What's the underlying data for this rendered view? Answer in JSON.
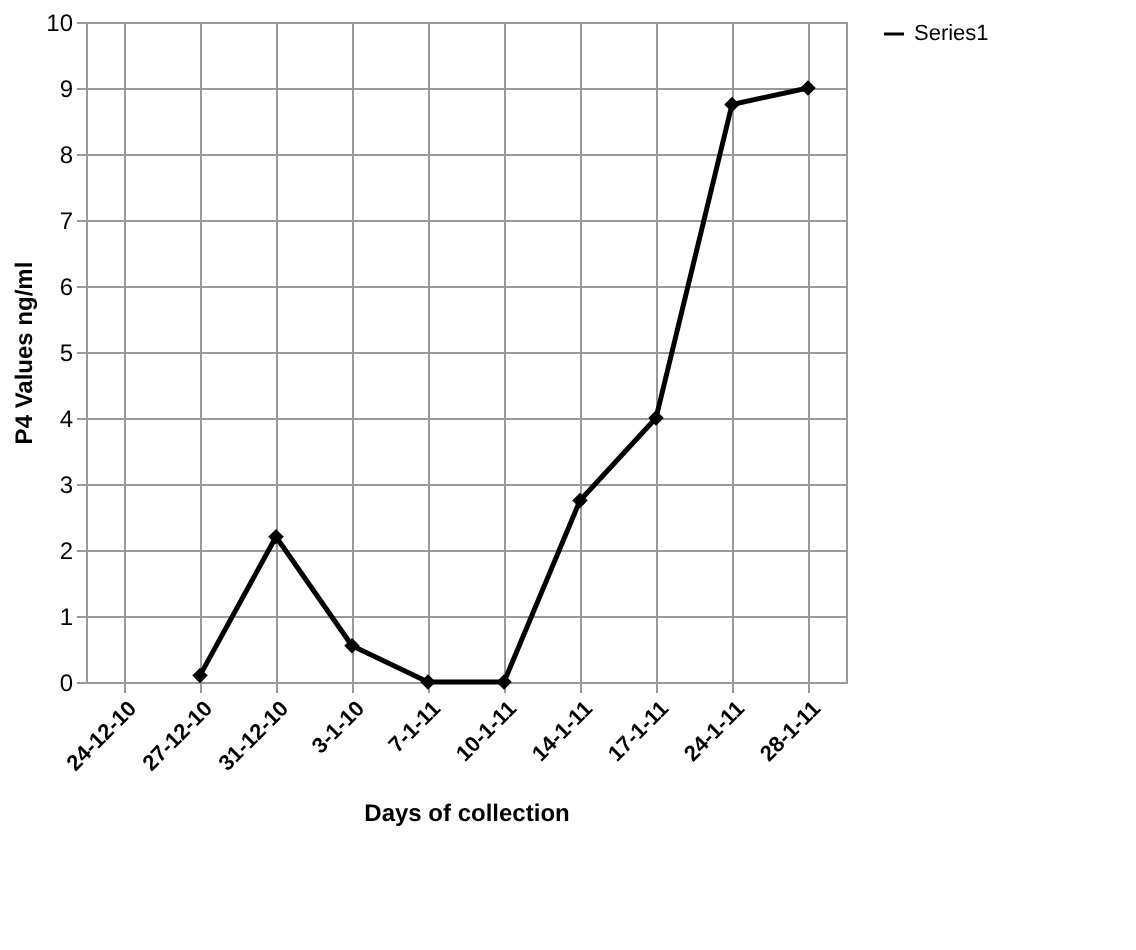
{
  "chart_data": {
    "type": "line",
    "xlabel": "Days of collection",
    "ylabel": "P4 Values ng/ml",
    "categories": [
      "24-12-10",
      "27-12-10",
      "31-12-10",
      "3-1-10",
      "7-1-11",
      "10-1-11",
      "14-1-11",
      "17-1-11",
      "24-1-11",
      "28-1-11"
    ],
    "series": [
      {
        "name": "Series1",
        "color": "#000000",
        "values": [
          null,
          0.1,
          2.2,
          0.55,
          0,
          0,
          2.75,
          4.0,
          8.75,
          9.0
        ]
      }
    ],
    "ylim": [
      0,
      10
    ],
    "yticks": [
      0,
      1,
      2,
      3,
      4,
      5,
      6,
      7,
      8,
      9,
      10
    ],
    "grid": true,
    "legend": "right",
    "marker": "diamond",
    "line_style": "solid"
  }
}
